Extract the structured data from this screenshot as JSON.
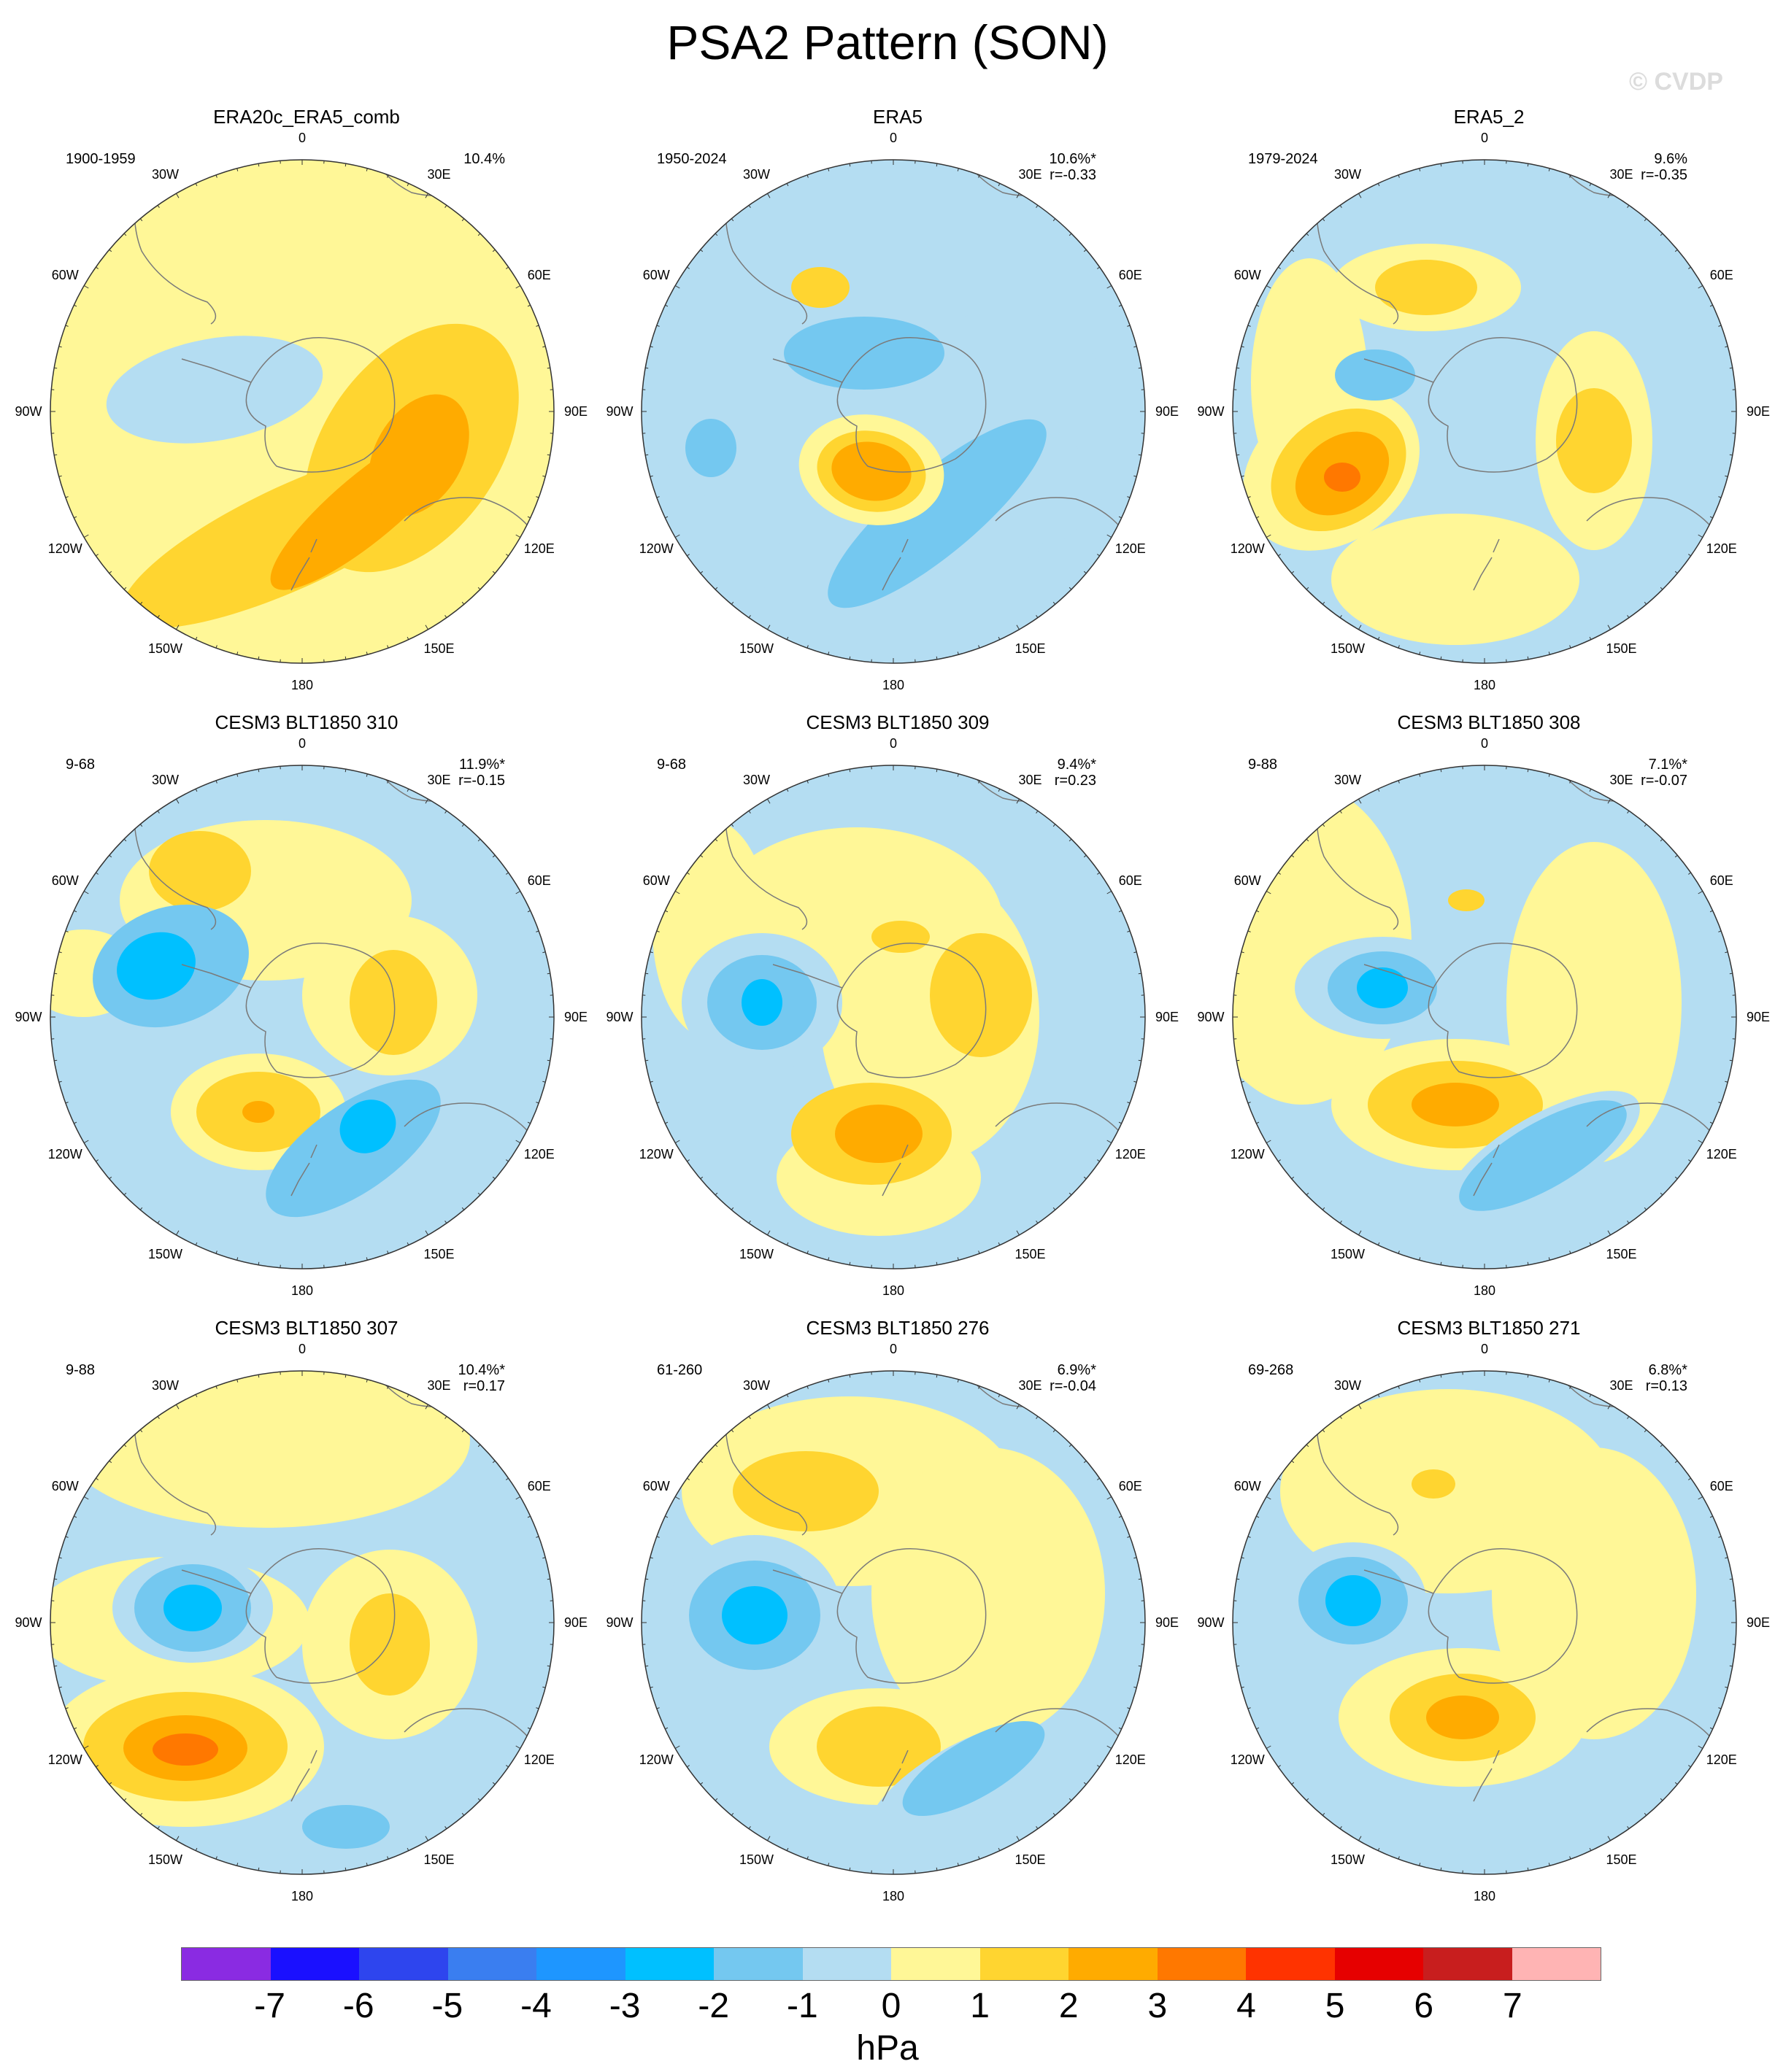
{
  "title": "PSA2 Pattern (SON)",
  "watermark": "© CVDP",
  "lon_labels": [
    "0",
    "30E",
    "60E",
    "90E",
    "120E",
    "150E",
    "180",
    "150W",
    "120W",
    "90W",
    "60W",
    "30W"
  ],
  "panels": [
    {
      "title": "ERA20c_ERA5_comb",
      "period": "1900-1959",
      "pct": "10.4%",
      "r": ""
    },
    {
      "title": "ERA5",
      "period": "1950-2024",
      "pct": "10.6%*",
      "r": "r=-0.33"
    },
    {
      "title": "ERA5_2",
      "period": "1979-2024",
      "pct": "9.6%",
      "r": "r=-0.35"
    },
    {
      "title": "CESM3 BLT1850 310",
      "period": "9-68",
      "pct": "11.9%*",
      "r": "r=-0.15"
    },
    {
      "title": "CESM3 BLT1850 309",
      "period": "9-68",
      "pct": "9.4%*",
      "r": "r=0.23"
    },
    {
      "title": "CESM3 BLT1850 308",
      "period": "9-88",
      "pct": "7.1%*",
      "r": "r=-0.07"
    },
    {
      "title": "CESM3 BLT1850 307",
      "period": "9-88",
      "pct": "10.4%*",
      "r": "r=0.17"
    },
    {
      "title": "CESM3 BLT1850 276",
      "period": "61-260",
      "pct": "6.9%*",
      "r": "r=-0.04"
    },
    {
      "title": "CESM3 BLT1850 271",
      "period": "69-268",
      "pct": "6.8%*",
      "r": "r=0.13"
    }
  ],
  "colorbar": {
    "units": "hPa",
    "labels": [
      "-7",
      "-6",
      "-5",
      "-4",
      "-3",
      "-2",
      "-1",
      "0",
      "1",
      "2",
      "3",
      "4",
      "5",
      "6",
      "7"
    ],
    "colors": [
      "#8a2be2",
      "#1a10ff",
      "#2e45ee",
      "#3a7ef0",
      "#1e96ff",
      "#00c0ff",
      "#74c8f0",
      "#b4ddf2",
      "#fff797",
      "#ffd530",
      "#ffab00",
      "#ff7800",
      "#ff3300",
      "#e60000",
      "#c81e1e",
      "#ffb4b4"
    ]
  }
}
